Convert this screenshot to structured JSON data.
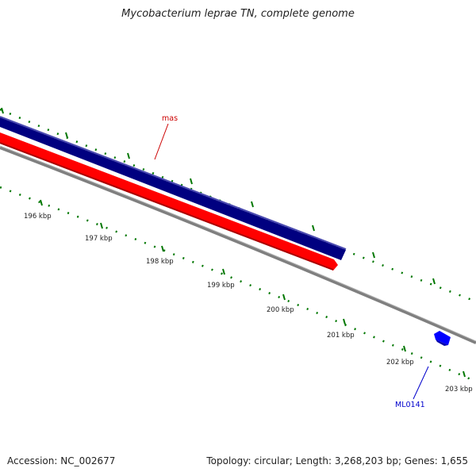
{
  "map": {
    "title": "Mycobacterium leprae TN, complete genome",
    "accession": "Accession: NC_002677",
    "summary": "Topology: circular; Length: 3,268,203 bp; Genes: 1,655"
  },
  "genes": [
    {
      "label": "mas",
      "color": "#cc0000",
      "track": "forward",
      "track_color": "#000080"
    },
    {
      "label": "ML0141",
      "color": "#0000cc",
      "track": "feature",
      "track_color": "#0000ff"
    }
  ],
  "tracks": {
    "forward_color": "#000080",
    "reverse_color": "#ff0000",
    "backbone_color": "#808080",
    "tick_color": "#007700"
  },
  "ticks": [
    {
      "label": "196 kbp"
    },
    {
      "label": "197 kbp"
    },
    {
      "label": "198 kbp"
    },
    {
      "label": "199 kbp"
    },
    {
      "label": "200 kbp"
    },
    {
      "label": "201 kbp"
    },
    {
      "label": "202 kbp"
    },
    {
      "label": "203 kbp"
    }
  ]
}
